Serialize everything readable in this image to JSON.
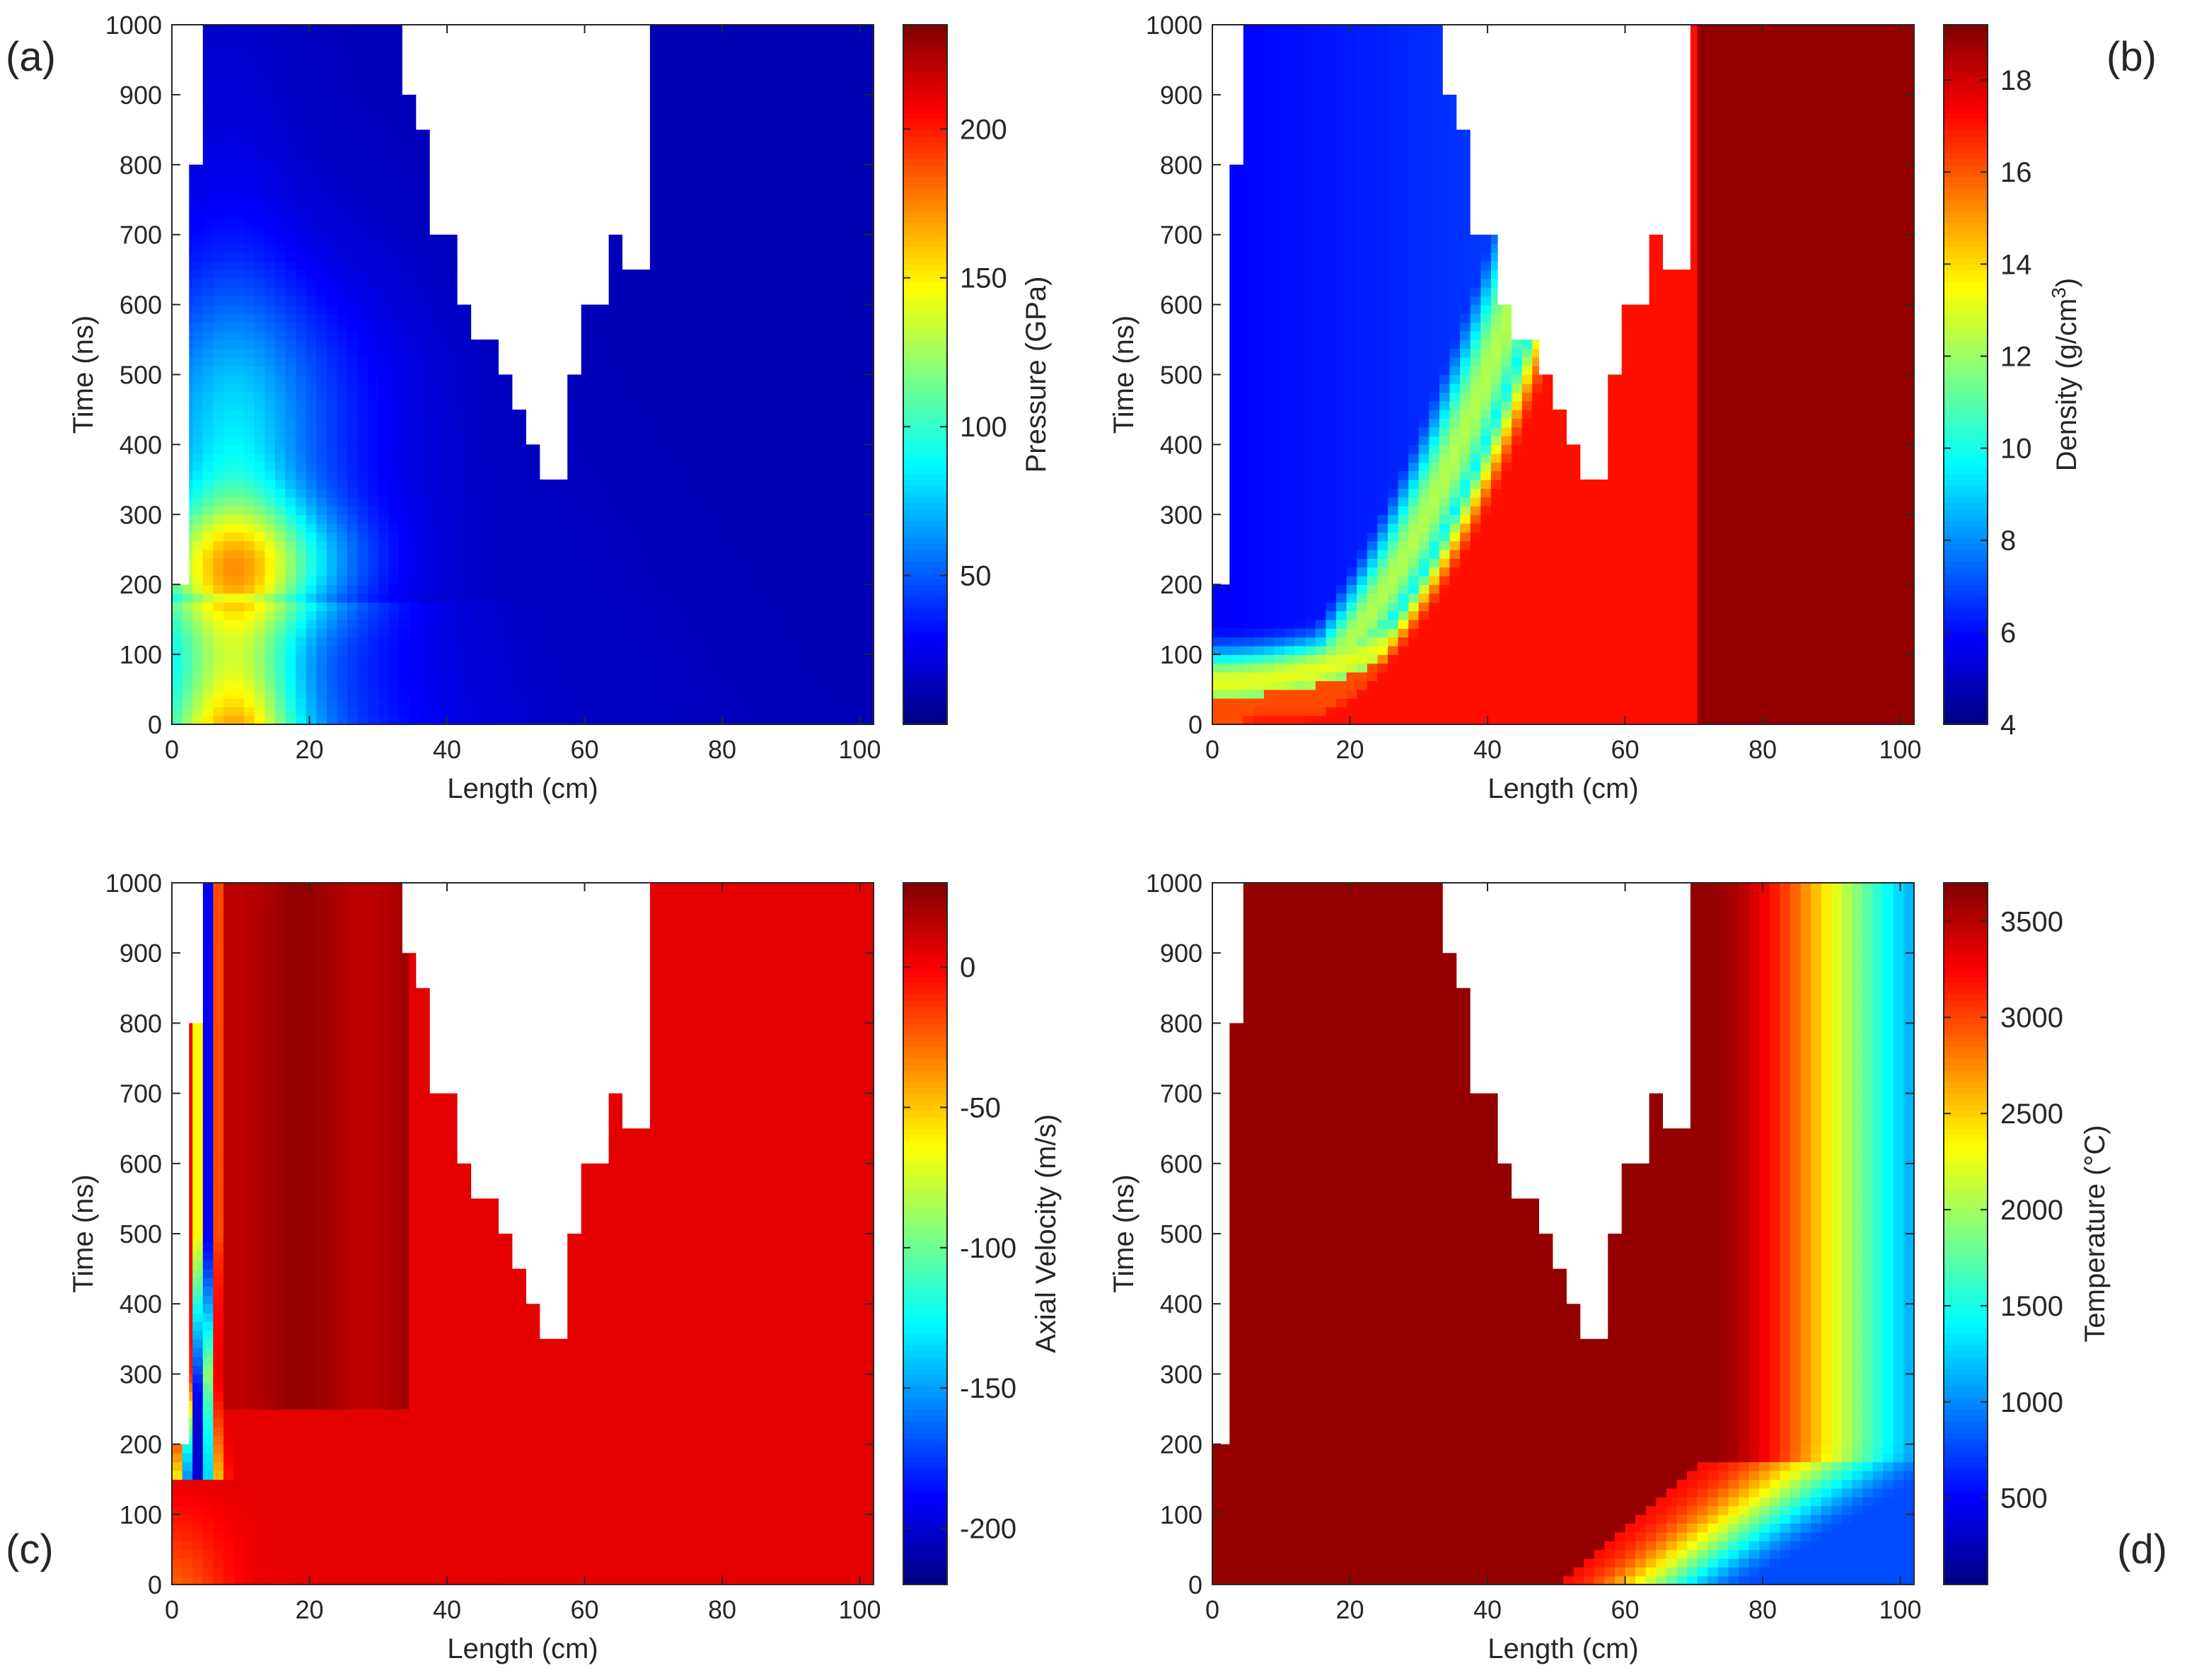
{
  "chart_data": [
    {
      "type": "heatmap",
      "panel_label": "(a)",
      "xlabel": "Length (cm)",
      "ylabel": "Time (ns)",
      "xlim": [
        0,
        102
      ],
      "ylim": [
        0,
        1000
      ],
      "xticks": [
        "0",
        "20",
        "40",
        "60",
        "80",
        "100"
      ],
      "yticks": [
        "0",
        "100",
        "200",
        "300",
        "400",
        "500",
        "600",
        "700",
        "800",
        "900",
        "1000"
      ],
      "colorbar": {
        "label": "Pressure (GPa)",
        "range": [
          0,
          235
        ],
        "ticks": [
          "50",
          "100",
          "150",
          "200"
        ],
        "colormap": "jet"
      },
      "field": "pressure",
      "max_value": 230,
      "description_values": {
        "peak_region_length_cm": [
          2,
          20
        ],
        "peak_region_time_ns": [
          0,
          200
        ],
        "bulk_value": 5
      }
    },
    {
      "type": "heatmap",
      "panel_label": "(b)",
      "xlabel": "Length (cm)",
      "ylabel": "Time (ns)",
      "xlim": [
        0,
        102
      ],
      "ylim": [
        0,
        1000
      ],
      "xticks": [
        "0",
        "20",
        "40",
        "60",
        "80",
        "100"
      ],
      "yticks": [
        "0",
        "100",
        "200",
        "300",
        "400",
        "500",
        "600",
        "700",
        "800",
        "900",
        "1000"
      ],
      "colorbar": {
        "label": "Density (g/cm",
        "label_sup": "3",
        "label_end": ")",
        "range": [
          4,
          19.2
        ],
        "ticks": [
          "4",
          "6",
          "8",
          "10",
          "12",
          "14",
          "16",
          "18"
        ],
        "colormap": "jet"
      },
      "field": "density",
      "max_value": 19.2,
      "min_value": 4
    },
    {
      "type": "heatmap",
      "panel_label": "(c)",
      "xlabel": "Length (cm)",
      "ylabel": "Time (ns)",
      "xlim": [
        0,
        102
      ],
      "ylim": [
        0,
        1000
      ],
      "xticks": [
        "0",
        "20",
        "40",
        "60",
        "80",
        "100"
      ],
      "yticks": [
        "0",
        "100",
        "200",
        "300",
        "400",
        "500",
        "600",
        "700",
        "800",
        "900",
        "1000"
      ],
      "colorbar": {
        "label": "Axial Velocity (m/s)",
        "range": [
          -220,
          30
        ],
        "ticks": [
          "0",
          "-50",
          "-100",
          "-150",
          "-200"
        ],
        "colormap": "jet"
      },
      "field": "velocity",
      "min_value": -210,
      "max_value": 20
    },
    {
      "type": "heatmap",
      "panel_label": "(d)",
      "xlabel": "Length (cm)",
      "ylabel": "Time (ns)",
      "xlim": [
        0,
        102
      ],
      "ylim": [
        0,
        1000
      ],
      "xticks": [
        "0",
        "20",
        "40",
        "60",
        "80",
        "100"
      ],
      "yticks": [
        "0",
        "100",
        "200",
        "300",
        "400",
        "500",
        "600",
        "700",
        "800",
        "900",
        "1000"
      ],
      "colorbar": {
        "label": "Temperature (°C)",
        "range": [
          50,
          3700
        ],
        "ticks": [
          "500",
          "1000",
          "1500",
          "2000",
          "2500",
          "3000",
          "3500"
        ],
        "colormap": "jet"
      },
      "field": "temperature",
      "max_value": 3700,
      "min_value": 200
    }
  ],
  "void_region": {
    "description": "white (no data) region common to all panels, in data units (Length cm, Time ns)",
    "left_notch": [
      [
        0,
        1000
      ],
      [
        4.5,
        1000
      ],
      [
        4.5,
        800
      ],
      [
        2.5,
        800
      ],
      [
        2.5,
        200
      ],
      [
        0,
        200
      ]
    ],
    "v_shape": [
      [
        33.5,
        1000
      ],
      [
        69.5,
        1000
      ],
      [
        69.5,
        650
      ],
      [
        65.5,
        650
      ],
      [
        65.5,
        700
      ],
      [
        63.5,
        700
      ],
      [
        63.5,
        600
      ],
      [
        59.5,
        600
      ],
      [
        59.5,
        500
      ],
      [
        57.5,
        500
      ],
      [
        57.5,
        350
      ],
      [
        53.5,
        350
      ],
      [
        53.5,
        400
      ],
      [
        51.5,
        400
      ],
      [
        51.5,
        450
      ],
      [
        49.5,
        450
      ],
      [
        49.5,
        500
      ],
      [
        47.5,
        500
      ],
      [
        47.5,
        550
      ],
      [
        43.5,
        550
      ],
      [
        43.5,
        600
      ],
      [
        41.5,
        600
      ],
      [
        41.5,
        700
      ],
      [
        37.5,
        700
      ],
      [
        37.5,
        850
      ],
      [
        35.5,
        850
      ],
      [
        35.5,
        900
      ],
      [
        33.5,
        900
      ]
    ]
  }
}
